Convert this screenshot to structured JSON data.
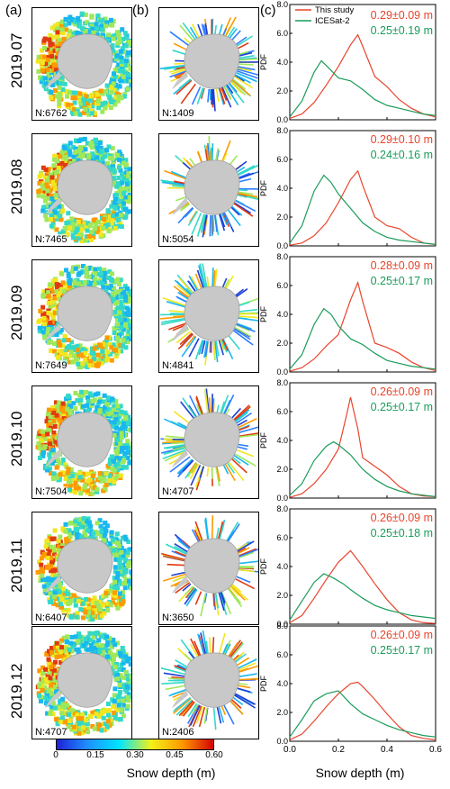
{
  "panel_labels": {
    "a": "(a)",
    "b": "(b)",
    "c": "(c)"
  },
  "rows": [
    {
      "month": "2019.07",
      "n_a": "N:6762",
      "n_b": "N:1409",
      "study_stat": "0.29±0.09 m",
      "ice_stat": "0.25±0.19 m"
    },
    {
      "month": "2019.08",
      "n_a": "N:7465",
      "n_b": "N:5054",
      "study_stat": "0.29±0.10 m",
      "ice_stat": "0.24±0.16 m"
    },
    {
      "month": "2019.09",
      "n_a": "N:7649",
      "n_b": "N:4841",
      "study_stat": "0.28±0.09 m",
      "ice_stat": "0.25±0.17 m"
    },
    {
      "month": "2019.10",
      "n_a": "N:7504",
      "n_b": "N:4707",
      "study_stat": "0.26±0.09 m",
      "ice_stat": "0.25±0.17 m"
    },
    {
      "month": "2019.11",
      "n_a": "N:6407",
      "n_b": "N:3650",
      "study_stat": "0.26±0.09 m",
      "ice_stat": "0.25±0.18 m"
    },
    {
      "month": "2019.12",
      "n_a": "N:4707",
      "n_b": "N:2406",
      "study_stat": "0.26±0.09 m",
      "ice_stat": "0.25±0.17 m"
    }
  ],
  "colorbar": {
    "title": "Snow depth (m)",
    "ticks": [
      "0",
      "0.15",
      "0.30",
      "0.45",
      "0.60"
    ],
    "colors": [
      "#1f1fd6",
      "#1e90ff",
      "#00e5ff",
      "#f2f21a",
      "#ff9900",
      "#d40000"
    ]
  },
  "chart_data": {
    "type": "line",
    "xlabel": "Snow depth (m)",
    "ylabel": "PDF",
    "xlim": [
      0.0,
      0.6
    ],
    "ylim": [
      0,
      8.0
    ],
    "xticks": [
      "0.0",
      "0.2",
      "0.4",
      "0.6"
    ],
    "yticks": [
      "0.0",
      "2.0",
      "4.0",
      "6.0",
      "8.0"
    ],
    "legend": {
      "placement": "top",
      "entries": [
        "This study",
        "ICESat-2"
      ]
    },
    "series_colors": {
      "This study": "#e8442c",
      "ICESat-2": "#1a9b5a"
    },
    "panels": [
      {
        "month": "2019.07",
        "series": [
          {
            "name": "This study",
            "x": [
              0.0,
              0.05,
              0.1,
              0.15,
              0.2,
              0.25,
              0.28,
              0.3,
              0.35,
              0.4,
              0.45,
              0.5,
              0.55,
              0.6
            ],
            "y": [
              0.1,
              0.4,
              1.2,
              2.4,
              3.7,
              5.2,
              5.9,
              5.1,
              3.0,
              2.3,
              1.4,
              0.8,
              0.4,
              0.2
            ]
          },
          {
            "name": "ICESat-2",
            "x": [
              0.0,
              0.05,
              0.1,
              0.13,
              0.16,
              0.2,
              0.25,
              0.3,
              0.35,
              0.4,
              0.45,
              0.5,
              0.55,
              0.6
            ],
            "y": [
              0.2,
              1.3,
              3.3,
              4.1,
              3.6,
              2.9,
              2.7,
              2.1,
              1.4,
              1.0,
              0.8,
              0.6,
              0.4,
              0.3
            ]
          }
        ]
      },
      {
        "month": "2019.08",
        "series": [
          {
            "name": "This study",
            "x": [
              0.0,
              0.05,
              0.1,
              0.15,
              0.2,
              0.25,
              0.28,
              0.3,
              0.35,
              0.4,
              0.45,
              0.5,
              0.55,
              0.6
            ],
            "y": [
              0.05,
              0.2,
              0.7,
              1.6,
              3.0,
              4.6,
              5.2,
              4.2,
              2.0,
              1.4,
              1.2,
              0.6,
              0.2,
              0.1
            ]
          },
          {
            "name": "ICESat-2",
            "x": [
              0.0,
              0.05,
              0.1,
              0.14,
              0.17,
              0.2,
              0.25,
              0.3,
              0.35,
              0.4,
              0.45,
              0.5,
              0.55,
              0.6
            ],
            "y": [
              0.2,
              1.4,
              3.8,
              4.9,
              4.4,
              3.6,
              2.6,
              1.6,
              1.0,
              0.6,
              0.4,
              0.3,
              0.2,
              0.1
            ]
          }
        ]
      },
      {
        "month": "2019.09",
        "series": [
          {
            "name": "This study",
            "x": [
              0.0,
              0.05,
              0.1,
              0.15,
              0.2,
              0.25,
              0.28,
              0.3,
              0.35,
              0.4,
              0.45,
              0.5,
              0.55,
              0.6
            ],
            "y": [
              0.05,
              0.3,
              0.9,
              1.8,
              2.6,
              5.0,
              6.2,
              4.9,
              2.0,
              1.7,
              1.3,
              0.7,
              0.3,
              0.1
            ]
          },
          {
            "name": "ICESat-2",
            "x": [
              0.0,
              0.05,
              0.1,
              0.14,
              0.17,
              0.2,
              0.25,
              0.3,
              0.35,
              0.4,
              0.45,
              0.5,
              0.55,
              0.6
            ],
            "y": [
              0.2,
              1.2,
              3.3,
              4.4,
              4.0,
              3.2,
              2.3,
              1.9,
              1.3,
              0.8,
              0.6,
              0.4,
              0.3,
              0.2
            ]
          }
        ]
      },
      {
        "month": "2019.10",
        "series": [
          {
            "name": "This study",
            "x": [
              0.0,
              0.05,
              0.1,
              0.15,
              0.2,
              0.23,
              0.25,
              0.28,
              0.3,
              0.35,
              0.4,
              0.45,
              0.5,
              0.55,
              0.6
            ],
            "y": [
              0.05,
              0.3,
              1.0,
              2.0,
              3.4,
              5.5,
              7.0,
              4.8,
              2.8,
              2.2,
              1.6,
              0.8,
              0.3,
              0.15,
              0.1
            ]
          },
          {
            "name": "ICESat-2",
            "x": [
              0.0,
              0.05,
              0.1,
              0.15,
              0.18,
              0.2,
              0.25,
              0.3,
              0.35,
              0.4,
              0.45,
              0.5,
              0.55,
              0.6
            ],
            "y": [
              0.2,
              1.0,
              2.6,
              3.6,
              3.9,
              3.7,
              3.0,
              2.0,
              1.3,
              0.8,
              0.5,
              0.3,
              0.2,
              0.1
            ]
          }
        ]
      },
      {
        "month": "2019.11",
        "series": [
          {
            "name": "This study",
            "x": [
              0.0,
              0.05,
              0.1,
              0.15,
              0.2,
              0.25,
              0.3,
              0.35,
              0.4,
              0.45,
              0.5,
              0.55,
              0.6
            ],
            "y": [
              0.1,
              0.6,
              1.8,
              3.1,
              4.3,
              5.1,
              4.0,
              2.8,
              1.7,
              0.8,
              0.3,
              0.1,
              0.05
            ]
          },
          {
            "name": "ICESat-2",
            "x": [
              0.0,
              0.05,
              0.1,
              0.14,
              0.18,
              0.22,
              0.25,
              0.3,
              0.35,
              0.4,
              0.45,
              0.5,
              0.55,
              0.6
            ],
            "y": [
              0.3,
              1.6,
              2.9,
              3.5,
              3.2,
              2.8,
              2.4,
              1.8,
              1.3,
              1.0,
              0.8,
              0.6,
              0.5,
              0.4
            ]
          }
        ]
      },
      {
        "month": "2019.12",
        "series": [
          {
            "name": "This study",
            "x": [
              0.0,
              0.05,
              0.1,
              0.15,
              0.2,
              0.25,
              0.28,
              0.3,
              0.35,
              0.4,
              0.45,
              0.5,
              0.55,
              0.6
            ],
            "y": [
              0.1,
              0.5,
              1.4,
              2.4,
              3.3,
              4.0,
              4.1,
              3.8,
              2.9,
              1.9,
              1.0,
              0.4,
              0.2,
              0.1
            ]
          },
          {
            "name": "ICESat-2",
            "x": [
              0.0,
              0.05,
              0.1,
              0.15,
              0.2,
              0.25,
              0.3,
              0.35,
              0.4,
              0.45,
              0.5,
              0.55,
              0.6
            ],
            "y": [
              0.3,
              1.5,
              2.8,
              3.3,
              3.5,
              2.6,
              1.9,
              1.5,
              1.1,
              0.8,
              0.6,
              0.4,
              0.3
            ]
          }
        ]
      }
    ]
  }
}
